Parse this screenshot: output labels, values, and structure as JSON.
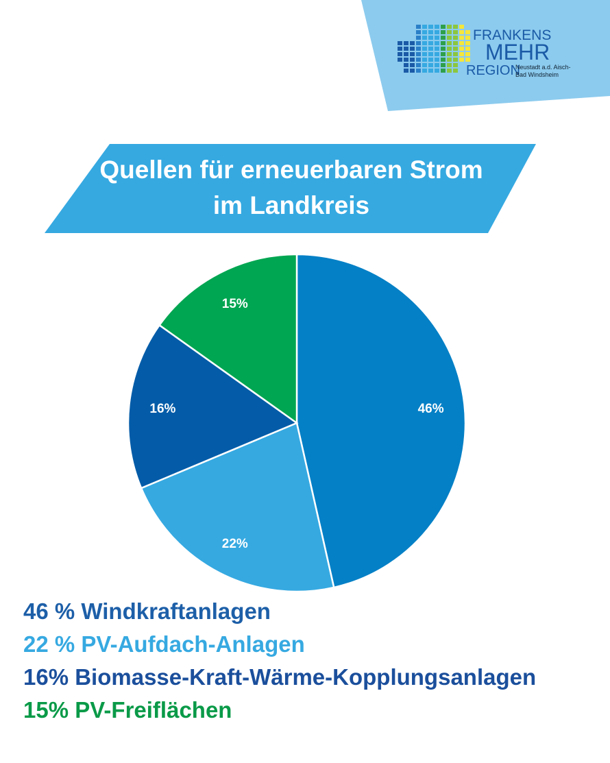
{
  "logo": {
    "line1": "FRANKENS",
    "line2": "MEHR",
    "line3": "REGION",
    "sub1": "Neustadt a.d. Aisch-",
    "sub2": "Bad Windsheim"
  },
  "title": {
    "line1": "Quellen für erneuerbaren Strom",
    "line2": "im Landkreis"
  },
  "colors": {
    "banner": "#36a9e1",
    "corner": "#8ccbee"
  },
  "chart_data": {
    "type": "pie",
    "start": "top, clockwise",
    "slices": [
      {
        "label": "46%",
        "value": 46,
        "color": "#0480c6"
      },
      {
        "label": "22%",
        "value": 22,
        "color": "#36a9e1"
      },
      {
        "label": "16%",
        "value": 16,
        "color": "#045ca8"
      },
      {
        "label": "15%",
        "value": 15,
        "color": "#00a651"
      }
    ]
  },
  "legend": [
    {
      "text": "46 % Windkraftanlagen",
      "color": "#1d5fa8"
    },
    {
      "text": "22 % PV-Aufdach-Anlagen",
      "color": "#36a9e1"
    },
    {
      "text": "16% Biomasse-Kraft-Wärme-Kopplungsanlagen",
      "color": "#1b4f9c"
    },
    {
      "text": "15% PV-Freiflächen",
      "color": "#0a9a48"
    }
  ]
}
